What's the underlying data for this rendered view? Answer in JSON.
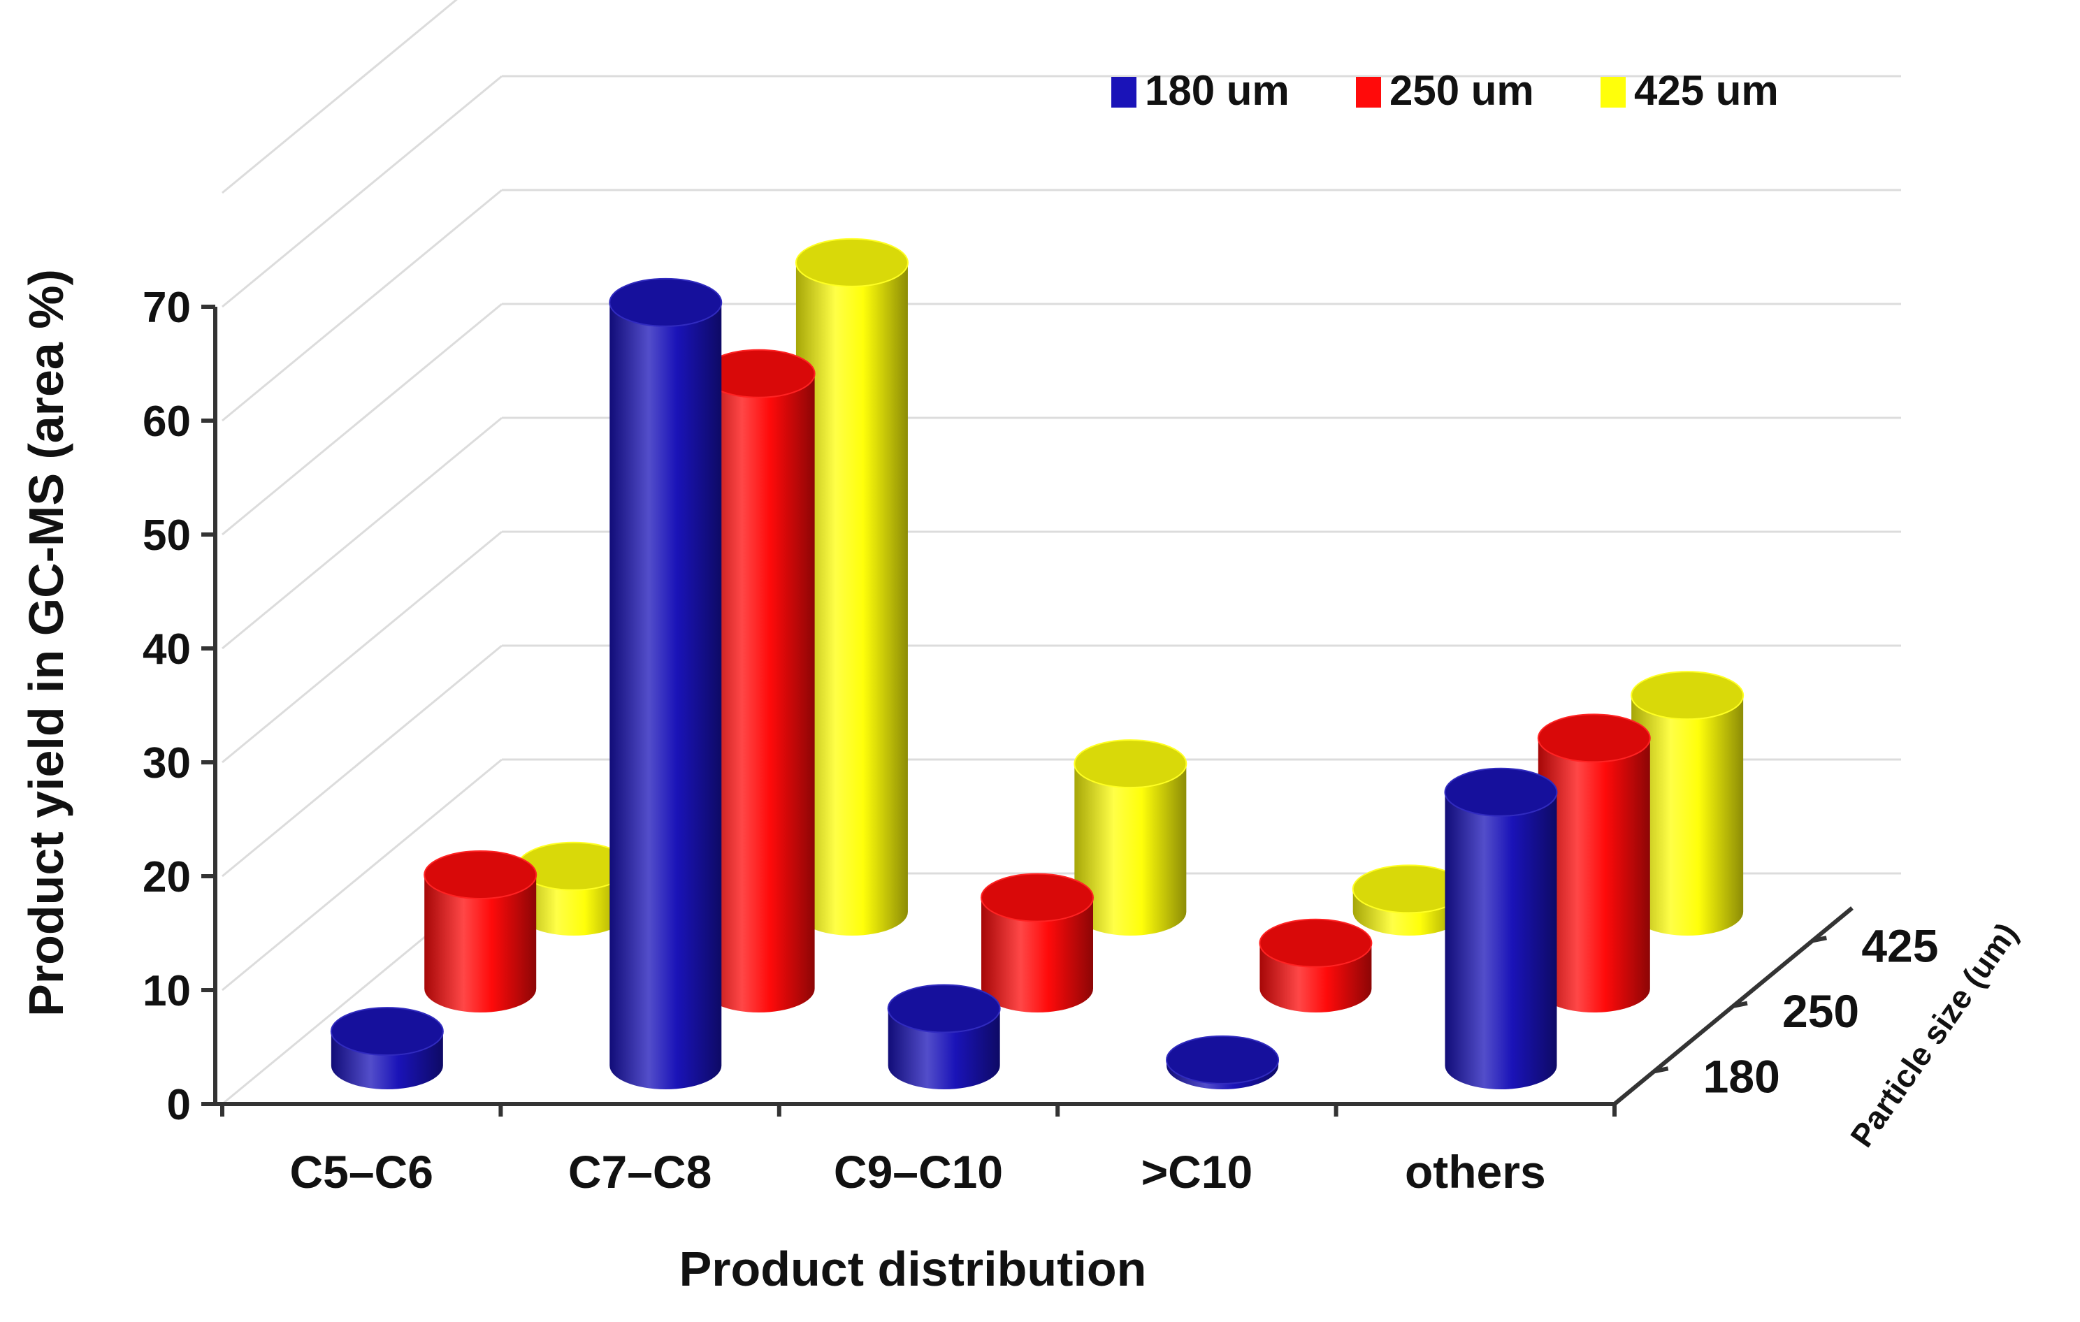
{
  "chart_data": {
    "type": "bar",
    "style": "3d-cylinder",
    "categories": [
      "C5–C6",
      "C7–C8",
      "C9–C10",
      ">C10",
      "others"
    ],
    "series": [
      {
        "name": "180 um",
        "color": "#1a13b8",
        "values": [
          3,
          67,
          5,
          0.5,
          24
        ]
      },
      {
        "name": "250 um",
        "color": "#ff0a0a",
        "values": [
          10,
          54,
          8,
          4,
          22
        ]
      },
      {
        "name": "425 um",
        "color": "#ffff0a",
        "values": [
          4,
          57,
          13,
          2,
          19
        ]
      }
    ],
    "xlabel": "Product distribution",
    "ylabel": "Product yield in GC-MS (area %)",
    "zlabel": "Particle size (um)",
    "z_ticks": [
      "180",
      "250",
      "425"
    ],
    "yticks": [
      "0",
      "10",
      "20",
      "30",
      "40",
      "50",
      "60",
      "70"
    ],
    "ylim": [
      0,
      70
    ],
    "grid": true,
    "legend_position": "top"
  }
}
